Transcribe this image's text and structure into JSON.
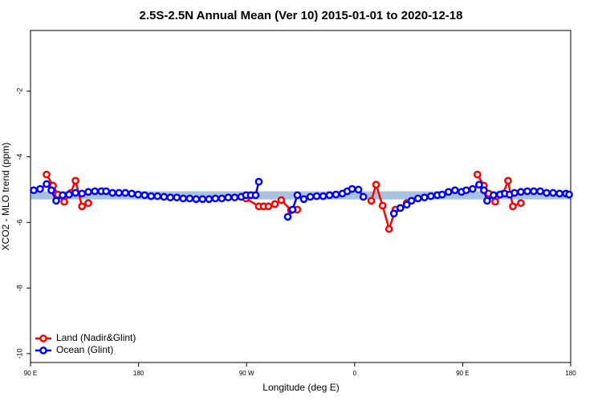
{
  "chart_data": {
    "type": "line",
    "title": "2.5S-2.5N Annual Mean (Ver 10)   2015-01-01 to 2020-12-18",
    "x_label": "Longitude (deg E)",
    "y_label": "XCO2 - MLO trend (ppm)",
    "xlim": [
      90,
      540
    ],
    "ylim": [
      -10.27,
      -0.15
    ],
    "xticks": [
      {
        "value": 90,
        "label": "90 E"
      },
      180,
      {
        "value": 270,
        "label": "90 W"
      },
      {
        "value": 360,
        "label": "0"
      },
      {
        "value": 450,
        "label": "90 E"
      },
      {
        "value": 540,
        "label": "180"
      }
    ],
    "yticks": [
      -10,
      -8,
      -6,
      -4,
      -2
    ],
    "band": {
      "range": [
        -5.3,
        -5.05
      ],
      "color": "#a9c3df"
    },
    "legend": "bottom-left",
    "series": [
      {
        "name": "Land (Nadir&Glint)",
        "color": "#ff0000",
        "x": [
          103.4,
          108.8,
          112.8,
          118.1,
          123.5,
          127.5,
          132.9,
          138.2,
          null,
          269.5,
          280.2,
          284.2,
          288.2,
          293.6,
          298.9,
          307.0,
          312.3,
          null,
          373.9,
          377.9,
          383.3,
          388.7,
          394.0,
          398.1,
          403.4,
          null,
          462.3,
          467.7,
          471.7,
          477.1,
          483.8,
          487.8,
          491.8,
          498.5
        ],
        "values": [
          -4.54,
          -4.88,
          -5.15,
          -5.37,
          -5.1,
          -4.73,
          -5.51,
          -5.41,
          null,
          -5.27,
          -5.51,
          -5.51,
          -5.51,
          -5.44,
          -5.32,
          -5.63,
          -5.61,
          null,
          -5.34,
          -4.85,
          -5.49,
          -6.2,
          -5.61,
          -5.56,
          -5.41,
          null,
          -4.54,
          -4.88,
          -5.12,
          -5.37,
          -5.12,
          -4.73,
          -5.51,
          -5.41
        ]
      },
      {
        "name": "Ocean (Glint)",
        "color": "#0000ff",
        "x": [
          92.7,
          98.0,
          103.4,
          107.4,
          111.4,
          116.8,
          122.1,
          127.5,
          132.9,
          138.2,
          143.6,
          148.9,
          153.0,
          158.3,
          163.7,
          169.0,
          174.4,
          179.7,
          185.1,
          190.5,
          195.8,
          201.2,
          206.5,
          211.9,
          217.2,
          222.6,
          228.0,
          233.3,
          238.7,
          244.0,
          249.4,
          254.7,
          260.1,
          265.5,
          269.5,
          273.5,
          277.5,
          280.2,
          null,
          304.3,
          308.3,
          312.3,
          317.7,
          323.1,
          328.4,
          333.8,
          339.1,
          344.5,
          349.8,
          353.9,
          357.9,
          363.2,
          367.3,
          null,
          392.7,
          398.1,
          403.4,
          407.4,
          412.8,
          418.2,
          423.5,
          428.9,
          432.9,
          438.2,
          443.6,
          449.0,
          453.0,
          458.3,
          463.7,
          467.7,
          470.4,
          475.7,
          481.1,
          485.1,
          489.1,
          493.2,
          498.5,
          503.9,
          509.2,
          514.6,
          519.9,
          525.3,
          530.7,
          536.0,
          538.7
        ],
        "values": [
          -5.02,
          -4.98,
          -4.83,
          -5.02,
          -5.34,
          -5.17,
          -5.15,
          -5.1,
          -5.12,
          -5.07,
          -5.05,
          -5.05,
          -5.05,
          -5.1,
          -5.1,
          -5.1,
          -5.12,
          -5.15,
          -5.17,
          -5.2,
          -5.2,
          -5.22,
          -5.24,
          -5.24,
          -5.27,
          -5.27,
          -5.29,
          -5.29,
          -5.29,
          -5.27,
          -5.27,
          -5.24,
          -5.24,
          -5.22,
          -5.17,
          -5.17,
          -5.17,
          -4.76,
          null,
          -5.83,
          -5.61,
          -5.17,
          -5.29,
          -5.22,
          -5.2,
          -5.2,
          -5.17,
          -5.15,
          -5.12,
          -5.05,
          -4.98,
          -5.0,
          -5.22,
          null,
          -5.73,
          -5.56,
          -5.46,
          -5.34,
          -5.27,
          -5.24,
          -5.2,
          -5.17,
          -5.15,
          -5.07,
          -5.02,
          -5.07,
          -5.02,
          -4.98,
          -4.85,
          -5.02,
          -5.34,
          -5.17,
          -5.15,
          -5.12,
          -5.15,
          -5.1,
          -5.07,
          -5.05,
          -5.05,
          -5.05,
          -5.1,
          -5.1,
          -5.12,
          -5.12,
          -5.15
        ]
      }
    ]
  }
}
